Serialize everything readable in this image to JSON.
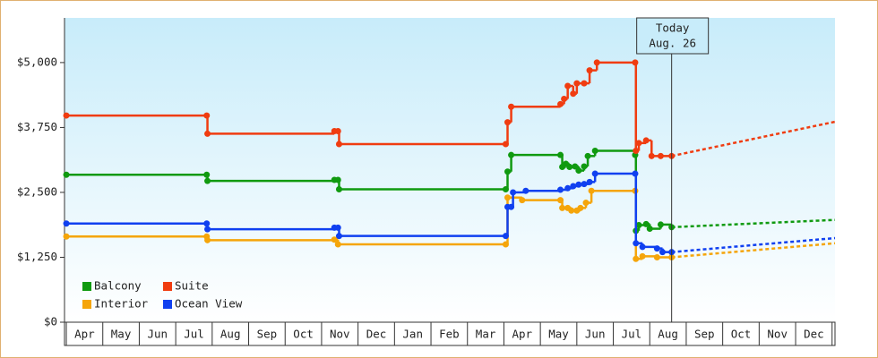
{
  "chart_data": {
    "type": "step-line",
    "xlim": [
      -0.05,
      21.08
    ],
    "ylim": [
      0,
      5860
    ],
    "yticks": [
      {
        "value": 0,
        "label": "$0"
      },
      {
        "value": 1250,
        "label": "$1,250"
      },
      {
        "value": 2500,
        "label": "$2,500"
      },
      {
        "value": 3750,
        "label": "$3,750"
      },
      {
        "value": 5000,
        "label": "$5,000"
      }
    ],
    "xticks": [
      {
        "value": 0,
        "label": "Apr"
      },
      {
        "value": 1,
        "label": "May"
      },
      {
        "value": 2,
        "label": "Jun"
      },
      {
        "value": 3,
        "label": "Jul"
      },
      {
        "value": 4,
        "label": "Aug"
      },
      {
        "value": 5,
        "label": "Sep"
      },
      {
        "value": 6,
        "label": "Oct"
      },
      {
        "value": 7,
        "label": "Nov"
      },
      {
        "value": 8,
        "label": "Dec"
      },
      {
        "value": 9,
        "label": "Jan"
      },
      {
        "value": 10,
        "label": "Feb"
      },
      {
        "value": 11,
        "label": "Mar"
      },
      {
        "value": 12,
        "label": "Apr"
      },
      {
        "value": 13,
        "label": "May"
      },
      {
        "value": 14,
        "label": "Jun"
      },
      {
        "value": 15,
        "label": "Jul"
      },
      {
        "value": 16,
        "label": "Aug"
      },
      {
        "value": 17,
        "label": "Sep"
      },
      {
        "value": 18,
        "label": "Oct"
      },
      {
        "value": 19,
        "label": "Nov"
      },
      {
        "value": 20,
        "label": "Dec"
      }
    ],
    "legend": "lower left",
    "annotation": {
      "x": 16.6,
      "lines": [
        "Today",
        "Aug. 26"
      ]
    },
    "series": [
      {
        "name": "Balcony",
        "color": "#109a10",
        "x": [
          0,
          3.85,
          3.87,
          7.35,
          7.45,
          7.48,
          12.05,
          12.1,
          12.2,
          13.55,
          13.6,
          13.7,
          13.8,
          13.95,
          14.05,
          14.2,
          14.3,
          14.5,
          15.6,
          15.62,
          15.7,
          15.9,
          16.0,
          16.3,
          16.6
        ],
        "values": [
          2840,
          2840,
          2720,
          2740,
          2740,
          2560,
          2560,
          2900,
          3220,
          3220,
          2990,
          3050,
          2990,
          3000,
          2920,
          3000,
          3200,
          3300,
          3220,
          1760,
          1870,
          1890,
          1800,
          1880,
          1830
        ],
        "projection": {
          "x": [
            16.6,
            21.08
          ],
          "values": [
            1830,
            1970
          ]
        }
      },
      {
        "name": "Suite",
        "color": "#f03c10",
        "x": [
          0,
          3.85,
          3.87,
          7.35,
          7.45,
          7.48,
          12.05,
          12.1,
          12.2,
          13.55,
          13.65,
          13.75,
          13.9,
          14.0,
          14.2,
          14.35,
          14.55,
          15.6,
          15.62,
          15.7,
          15.9,
          16.05,
          16.3,
          16.6
        ],
        "values": [
          3980,
          3980,
          3630,
          3680,
          3680,
          3430,
          3430,
          3850,
          4150,
          4200,
          4300,
          4550,
          4400,
          4600,
          4600,
          4850,
          5000,
          5000,
          3300,
          3450,
          3500,
          3200,
          3200,
          3200
        ],
        "projection": {
          "x": [
            16.6,
            21.08
          ],
          "values": [
            3200,
            3860
          ]
        }
      },
      {
        "name": "Interior",
        "color": "#f5a50a",
        "x": [
          0,
          3.85,
          3.87,
          7.35,
          7.45,
          12.05,
          12.1,
          12.5,
          13.55,
          13.6,
          13.75,
          13.85,
          14.0,
          14.1,
          14.25,
          14.4,
          15.6,
          15.62,
          15.8,
          16.2,
          16.6
        ],
        "values": [
          1650,
          1650,
          1580,
          1590,
          1500,
          1500,
          2400,
          2350,
          2350,
          2200,
          2200,
          2150,
          2150,
          2200,
          2300,
          2530,
          2530,
          1220,
          1270,
          1250,
          1250
        ],
        "projection": {
          "x": [
            16.6,
            21.08
          ],
          "values": [
            1250,
            1520
          ]
        }
      },
      {
        "name": "Ocean View",
        "color": "#1040f0",
        "x": [
          0,
          3.85,
          3.87,
          7.35,
          7.45,
          7.48,
          12.05,
          12.1,
          12.2,
          12.25,
          12.6,
          13.55,
          13.75,
          13.9,
          14.05,
          14.2,
          14.35,
          14.5,
          15.6,
          15.62,
          15.8,
          16.2,
          16.35,
          16.6
        ],
        "values": [
          1900,
          1900,
          1790,
          1820,
          1820,
          1660,
          1660,
          2220,
          2220,
          2500,
          2530,
          2550,
          2580,
          2620,
          2650,
          2660,
          2700,
          2860,
          2860,
          1520,
          1450,
          1420,
          1350,
          1350
        ],
        "projection": {
          "x": [
            16.6,
            21.08
          ],
          "values": [
            1350,
            1620
          ]
        }
      }
    ]
  }
}
